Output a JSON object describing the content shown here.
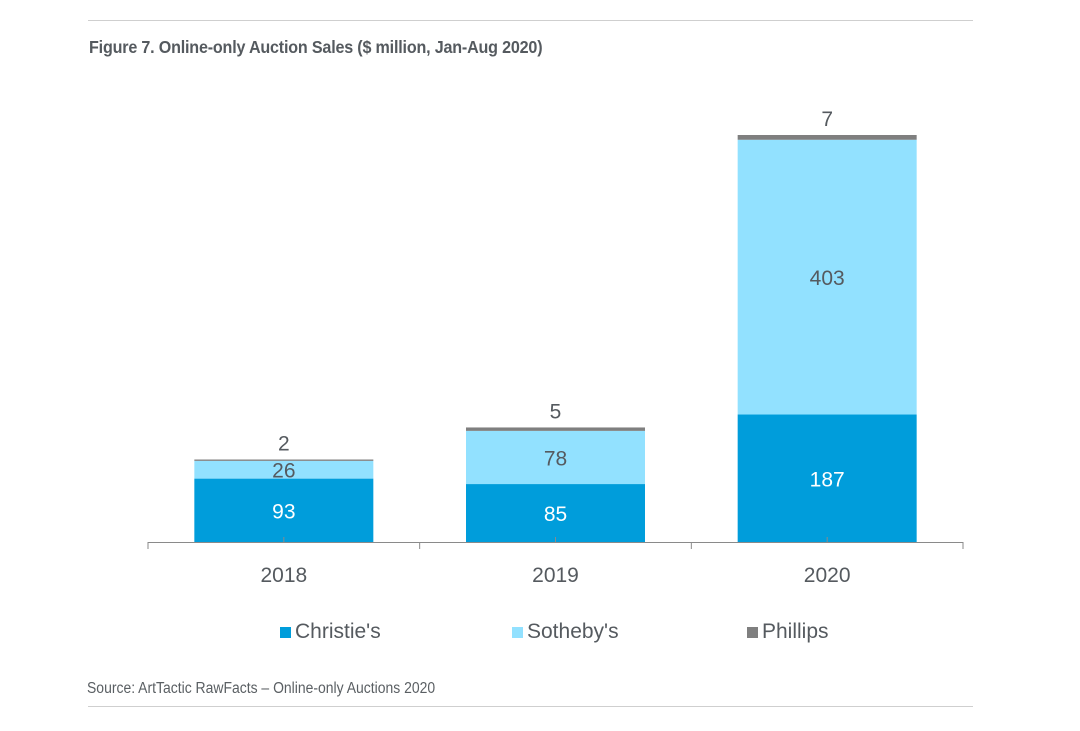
{
  "chart_data": {
    "type": "bar",
    "stacked": true,
    "title": "Figure 7. Online-only Auction Sales ($ million, Jan-Aug 2020)",
    "xlabel": "",
    "ylabel": "",
    "categories": [
      "2018",
      "2019",
      "2020"
    ],
    "series": [
      {
        "name": "Christie's",
        "color": "#009ddb",
        "label_color": "#ffffff",
        "values": [
          93,
          85,
          187
        ]
      },
      {
        "name": "Sotheby's",
        "color": "#92e1ff",
        "label_color": "#555a5f",
        "values": [
          26,
          78,
          403
        ]
      },
      {
        "name": "Phillips",
        "color": "#7f7f7f",
        "label_color": "#555a5f",
        "values": [
          2,
          5,
          7
        ]
      }
    ],
    "ylim": [
      0,
      600
    ],
    "grid": false,
    "legend": "bottom",
    "source": "Source: ArtTactic RawFacts – Online-only Auctions 2020"
  }
}
